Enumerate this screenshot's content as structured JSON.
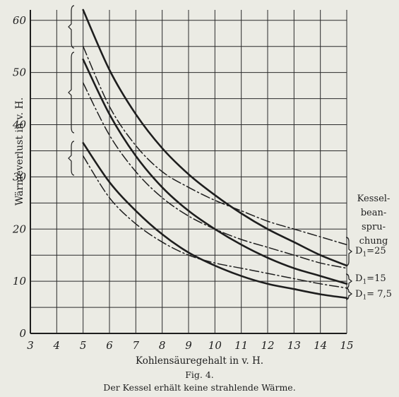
{
  "chart_data": {
    "type": "line",
    "title": "",
    "xlabel": "Kohlensäuregehalt in v. H.",
    "ylabel": "Wärmeverlust in v. H.",
    "xlim": [
      3,
      15
    ],
    "ylim": [
      0,
      62
    ],
    "x_ticks": [
      "3",
      "4",
      "5",
      "6",
      "7",
      "8",
      "9",
      "10",
      "11",
      "12",
      "13",
      "14",
      "15"
    ],
    "y_ticks": [
      "0",
      "10",
      "20",
      "30",
      "40",
      "50",
      "60"
    ],
    "grid": true,
    "legend": {
      "title": "Kessel-beanspruchung",
      "title_lines": [
        "Kessel-",
        "bean-",
        "spru-",
        "chung"
      ],
      "placement": "right",
      "entries": [
        {
          "label_prefix": "D",
          "label_sub": "1",
          "label_suffix": "=25",
          "value": "25"
        },
        {
          "label_prefix": "D",
          "label_sub": "1",
          "label_suffix": "=15",
          "value": "15"
        },
        {
          "label_prefix": "D",
          "label_sub": "1",
          "label_suffix": "= 7,5",
          "value": "7,5"
        }
      ]
    },
    "series": [
      {
        "group": "25",
        "style": "solid",
        "x": [
          5,
          6,
          7,
          8,
          9,
          10,
          11,
          12,
          13,
          14,
          15
        ],
        "y": [
          62,
          50.5,
          42,
          35.5,
          30.5,
          26.5,
          23,
          20,
          17.5,
          15,
          13
        ]
      },
      {
        "group": "25",
        "style": "dash-dot",
        "x": [
          5,
          6,
          7,
          8,
          9,
          10,
          11,
          12,
          13,
          14,
          15
        ],
        "y": [
          55,
          43.5,
          36,
          31,
          28,
          25.5,
          23.5,
          21.5,
          20,
          18.5,
          17
        ]
      },
      {
        "group": "15",
        "style": "solid",
        "x": [
          5,
          6,
          7,
          8,
          9,
          10,
          11,
          12,
          13,
          14,
          15
        ],
        "y": [
          52.5,
          42,
          34,
          28,
          23.5,
          20,
          17,
          14.5,
          12.5,
          11,
          9.5
        ]
      },
      {
        "group": "15",
        "style": "dash-dot",
        "x": [
          5,
          6,
          7,
          8,
          9,
          10,
          11,
          12,
          13,
          14,
          15
        ],
        "y": [
          48,
          38,
          31,
          26,
          22.5,
          20,
          18,
          16.5,
          15,
          13.5,
          12.5
        ]
      },
      {
        "group": "7,5",
        "style": "solid",
        "x": [
          5,
          6,
          7,
          8,
          9,
          10,
          11,
          12,
          13,
          14,
          15
        ],
        "y": [
          36.5,
          29,
          23.5,
          19,
          15.5,
          13,
          11,
          9.5,
          8.5,
          7.5,
          6.8
        ]
      },
      {
        "group": "7,5",
        "style": "dash-dot",
        "x": [
          5,
          6,
          7,
          8,
          9,
          10,
          11,
          12,
          13,
          14,
          15
        ],
        "y": [
          34,
          26,
          21,
          17.5,
          15,
          13.5,
          12.5,
          11.5,
          10.5,
          9.5,
          8.7
        ]
      }
    ]
  },
  "figure": {
    "number": "Fig. 4.",
    "caption": "Der Kessel erhält keine strahlende Wärme."
  },
  "colors": {
    "background": "#ebebe4",
    "ink": "#1e1e1e",
    "grid": "#2b2b2b"
  }
}
